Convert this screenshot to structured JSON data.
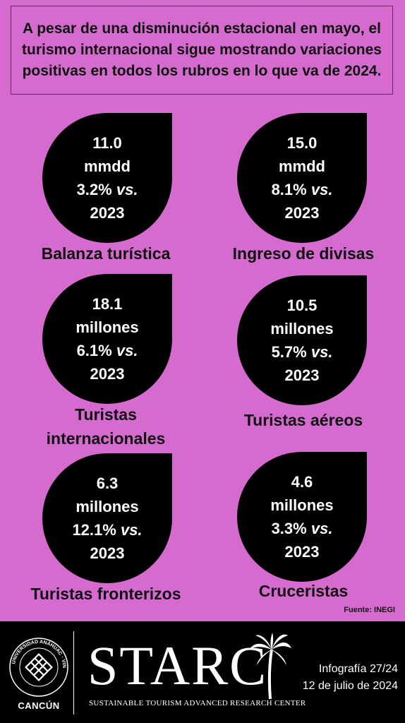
{
  "headline": "A pesar de una disminución estacional en mayo, el turismo internacional sigue mostrando variaciones positivas en todos los rubros en lo que va de 2024.",
  "cards": [
    {
      "value": "11.0",
      "unit": "mmdd",
      "pct": "3.2%",
      "vs": "vs.",
      "year": "2023",
      "label": "Balanza turística"
    },
    {
      "value": "15.0",
      "unit": "mmdd",
      "pct": "8.1%",
      "vs": "vs.",
      "year": "2023",
      "label": "Ingreso de divisas"
    },
    {
      "value": "18.1",
      "unit": "millones",
      "pct": "6.1%",
      "vs": "vs.",
      "year": "2023",
      "label": "Turistas internacionales"
    },
    {
      "value": "10.5",
      "unit": "millones",
      "pct": "5.7%",
      "vs": "vs.",
      "year": "2023",
      "label": "Turistas aéreos"
    },
    {
      "value": "6.3",
      "unit": "millones",
      "pct": "12.1%",
      "vs": "vs.",
      "year": "2023",
      "label": "Turistas fronterizos"
    },
    {
      "value": "4.6",
      "unit": "millones",
      "pct": "3.3%",
      "vs": "vs.",
      "year": "2023",
      "label": "Cruceristas"
    }
  ],
  "source": "Fuente: INEGI",
  "footer": {
    "university_seal_text": "UNIVERSIDAD ANÁHUAC · VINCE IN BONO MALUM",
    "campus": "CANCÚN",
    "brand": "STARC",
    "tagline": "SUSTAINABLE TOURISM ADVANCED RESEARCH CENTER",
    "infographic": "Infografía 27/24",
    "date": "12 de julio de 2024"
  },
  "colors": {
    "background": "#d56bcf",
    "drop": "#000000",
    "footer": "#000000"
  }
}
